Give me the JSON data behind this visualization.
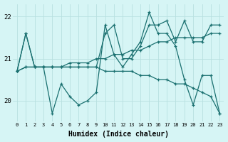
{
  "xlabel": "Humidex (Indice chaleur)",
  "bg_color": "#d6f5f5",
  "grid_color": "#b8e0e0",
  "line_color": "#1a7070",
  "xlim": [
    -0.5,
    23.5
  ],
  "ylim": [
    19.5,
    22.3
  ],
  "yticks": [
    20,
    21,
    22
  ],
  "xticks": [
    0,
    1,
    2,
    3,
    4,
    5,
    6,
    7,
    8,
    9,
    10,
    11,
    12,
    13,
    14,
    15,
    16,
    17,
    18,
    19,
    20,
    21,
    22,
    23
  ],
  "series": [
    {
      "y": [
        20.7,
        21.6,
        20.8,
        20.8,
        20.8,
        20.8,
        20.8,
        20.8,
        20.8,
        20.8,
        21.6,
        21.8,
        21.0,
        21.0,
        21.3,
        21.8,
        21.8,
        21.9,
        21.4,
        21.9,
        21.4,
        21.4,
        21.8,
        21.8
      ],
      "style": "-"
    },
    {
      "y": [
        20.7,
        20.8,
        20.8,
        20.8,
        20.8,
        20.8,
        20.8,
        20.8,
        20.8,
        20.8,
        20.7,
        20.7,
        20.7,
        20.7,
        20.6,
        20.6,
        20.5,
        20.5,
        20.4,
        20.4,
        20.3,
        20.2,
        20.1,
        19.7
      ],
      "style": "-"
    },
    {
      "y": [
        20.7,
        20.8,
        20.8,
        20.8,
        20.8,
        20.8,
        20.9,
        20.9,
        20.9,
        21.0,
        21.0,
        21.1,
        21.1,
        21.2,
        21.2,
        21.3,
        21.4,
        21.4,
        21.5,
        21.5,
        21.5,
        21.5,
        21.6,
        21.6
      ],
      "style": "-"
    },
    {
      "y": [
        20.7,
        21.6,
        20.8,
        20.8,
        19.7,
        20.4,
        20.1,
        19.9,
        20.0,
        20.2,
        21.8,
        21.1,
        20.8,
        21.1,
        21.4,
        22.1,
        21.6,
        21.6,
        21.3,
        20.5,
        19.9,
        20.6,
        20.6,
        19.7
      ],
      "style": "-"
    }
  ]
}
